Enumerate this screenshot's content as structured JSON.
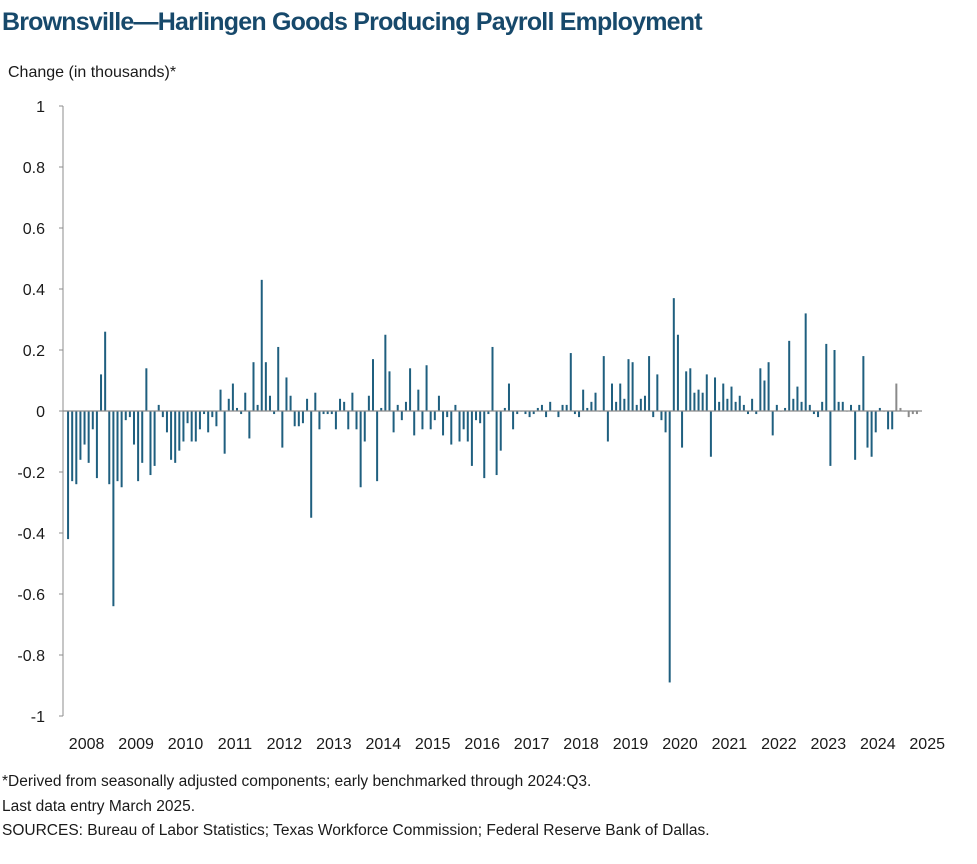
{
  "chart_data": {
    "type": "bar",
    "title": "Brownsville—Harlingen Goods Producing Payroll Employment",
    "ylabel": "Change (in thousands)*",
    "xlabel": "",
    "ylim": [
      -1,
      1
    ],
    "yticks": [
      1,
      0.8,
      0.6,
      0.4,
      0.2,
      0,
      -0.2,
      -0.4,
      -0.6,
      -0.8,
      -1
    ],
    "ytick_labels": [
      "1",
      "0.8",
      "0.6",
      "0.4",
      "0.2",
      "0",
      "-0.2",
      "-0.4",
      "-0.6",
      "-0.8",
      "-1"
    ],
    "xtick_labels": [
      "2008",
      "2009",
      "2010",
      "2011",
      "2012",
      "2013",
      "2014",
      "2015",
      "2016",
      "2017",
      "2018",
      "2019",
      "2020",
      "2021",
      "2022",
      "2023",
      "2024",
      "2025"
    ],
    "x_start": "2008-01",
    "x_end": "2025-03",
    "grid": false,
    "legend": "none",
    "bar_color": "#1f5f7f",
    "estimate_color": "#8a8a8a",
    "estimate_from": "2024-10",
    "values": [
      -0.42,
      -0.23,
      -0.24,
      -0.16,
      -0.11,
      -0.17,
      -0.06,
      -0.22,
      0.12,
      0.26,
      -0.24,
      -0.64,
      -0.23,
      -0.25,
      -0.03,
      -0.02,
      -0.11,
      -0.23,
      -0.17,
      0.14,
      -0.21,
      -0.18,
      0.02,
      -0.02,
      -0.07,
      -0.16,
      -0.17,
      -0.13,
      -0.1,
      -0.04,
      -0.1,
      -0.1,
      -0.06,
      -0.01,
      -0.07,
      -0.02,
      -0.05,
      0.07,
      -0.14,
      0.04,
      0.09,
      0.01,
      -0.01,
      0.06,
      -0.09,
      0.16,
      0.02,
      0.43,
      0.16,
      0.05,
      -0.01,
      0.21,
      -0.12,
      0.11,
      0.05,
      -0.05,
      -0.05,
      -0.04,
      0.04,
      -0.35,
      0.06,
      -0.06,
      -0.01,
      -0.01,
      -0.01,
      -0.06,
      0.04,
      0.03,
      -0.06,
      0.06,
      -0.06,
      -0.25,
      -0.1,
      0.05,
      0.17,
      -0.23,
      0.01,
      0.25,
      0.13,
      -0.07,
      0.02,
      -0.03,
      0.03,
      0.14,
      -0.08,
      0.07,
      -0.06,
      0.15,
      -0.06,
      -0.03,
      0.05,
      -0.08,
      -0.02,
      -0.11,
      0.02,
      -0.1,
      -0.06,
      -0.1,
      -0.18,
      -0.03,
      -0.04,
      -0.22,
      -0.01,
      0.21,
      -0.21,
      -0.13,
      0.01,
      0.09,
      -0.06,
      -0.01,
      0.0,
      -0.01,
      -0.02,
      -0.01,
      0.01,
      0.02,
      -0.02,
      0.03,
      0.0,
      -0.02,
      0.02,
      0.02,
      0.19,
      -0.01,
      -0.02,
      0.07,
      0.01,
      0.03,
      0.06,
      0.0,
      0.18,
      -0.1,
      0.09,
      0.03,
      0.09,
      0.04,
      0.17,
      0.16,
      0.02,
      0.04,
      0.05,
      0.18,
      -0.02,
      0.12,
      -0.03,
      -0.07,
      -0.89,
      0.37,
      0.25,
      -0.12,
      0.13,
      0.14,
      0.06,
      0.07,
      0.06,
      0.12,
      -0.15,
      0.11,
      0.03,
      0.09,
      0.04,
      0.08,
      0.03,
      0.05,
      0.02,
      -0.01,
      0.04,
      -0.01,
      0.14,
      0.1,
      0.16,
      -0.08,
      0.02,
      0.0,
      0.01,
      0.23,
      0.04,
      0.08,
      0.03,
      0.32,
      0.02,
      -0.01,
      -0.02,
      0.03,
      0.22,
      -0.18,
      0.2,
      0.03,
      0.03,
      0.0,
      0.02,
      -0.16,
      0.02,
      0.18,
      -0.12,
      -0.15,
      -0.07,
      0.01,
      0.0,
      -0.06,
      -0.06,
      0.09,
      0.01,
      0.0,
      -0.02,
      -0.01,
      -0.01
    ]
  },
  "footnotes": {
    "note": "*Derived from seasonally adjusted components; early benchmarked through 2024:Q3.",
    "last_entry": "Last data entry March 2025.",
    "sources": "SOURCES: Bureau of Labor Statistics; Texas Workforce Commission; Federal Reserve Bank of Dallas."
  }
}
